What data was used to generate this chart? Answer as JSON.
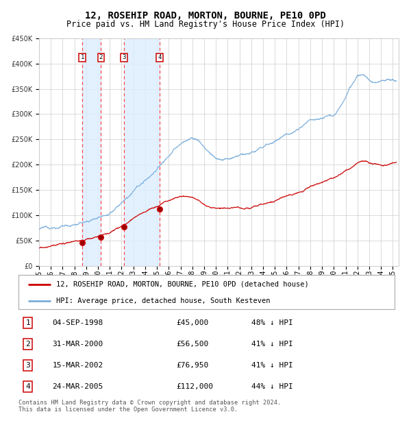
{
  "title": "12, ROSEHIP ROAD, MORTON, BOURNE, PE10 0PD",
  "subtitle": "Price paid vs. HM Land Registry's House Price Index (HPI)",
  "ylim": [
    0,
    450000
  ],
  "yticks": [
    0,
    50000,
    100000,
    150000,
    200000,
    250000,
    300000,
    350000,
    400000,
    450000
  ],
  "xlim_start": 1995.0,
  "xlim_end": 2025.5,
  "sale_dates": [
    1998.67,
    2000.25,
    2002.2,
    2005.22
  ],
  "sale_prices": [
    45000,
    56500,
    76950,
    112000
  ],
  "sale_labels": [
    "1",
    "2",
    "3",
    "4"
  ],
  "hpi_color": "#7aaddb",
  "price_color": "#cc0000",
  "shade_color": "#ddeeff",
  "dashed_color": "#ff4444",
  "grid_color": "#cccccc",
  "legend_entries": [
    "12, ROSEHIP ROAD, MORTON, BOURNE, PE10 0PD (detached house)",
    "HPI: Average price, detached house, South Kesteven"
  ],
  "table_rows": [
    [
      "1",
      "04-SEP-1998",
      "£45,000",
      "48% ↓ HPI"
    ],
    [
      "2",
      "31-MAR-2000",
      "£56,500",
      "41% ↓ HPI"
    ],
    [
      "3",
      "15-MAR-2002",
      "£76,950",
      "41% ↓ HPI"
    ],
    [
      "4",
      "24-MAR-2005",
      "£112,000",
      "44% ↓ HPI"
    ]
  ],
  "footer": "Contains HM Land Registry data © Crown copyright and database right 2024.\nThis data is licensed under the Open Government Licence v3.0.",
  "title_fontsize": 10,
  "subtitle_fontsize": 8.5,
  "tick_fontsize": 7,
  "legend_fontsize": 7.5,
  "table_fontsize": 8,
  "footer_fontsize": 6.2
}
